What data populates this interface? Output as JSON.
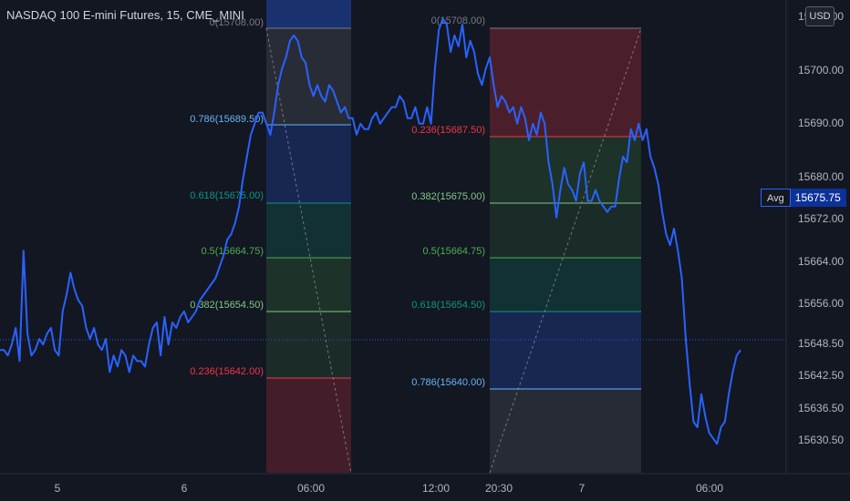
{
  "header": {
    "title": "NASDAQ 100 E-mini Futures, 15, CME_MINI",
    "currency_button": "USD"
  },
  "price_axis": {
    "labels": [
      "15708.00",
      "15700.00",
      "15690.00",
      "15680.00",
      "15672.00",
      "15664.00",
      "15656.00",
      "15648.50",
      "15642.50",
      "15636.50",
      "15630.50"
    ],
    "avg_label": "Avg",
    "avg_value": "15675.75"
  },
  "time_axis": {
    "labels": [
      "5",
      "6",
      "06:00",
      "12:00",
      "20:30",
      "7",
      "06:00"
    ]
  },
  "fib_left": {
    "levels": [
      {
        "ratio_text": "0(15708.00)",
        "color": "#787b86"
      },
      {
        "ratio_text": "0.786(15689.50)",
        "color": "#64b5f6"
      },
      {
        "ratio_text": "0.618(15675.00)",
        "color": "#089981"
      },
      {
        "ratio_text": "0.5(15664.75)",
        "color": "#4caf50"
      },
      {
        "ratio_text": "0.382(15654.50)",
        "color": "#81c784"
      },
      {
        "ratio_text": "0.236(15642.00)",
        "color": "#f23645"
      }
    ]
  },
  "fib_right": {
    "levels": [
      {
        "ratio_text": "0(15708.00)",
        "color": "#787b86"
      },
      {
        "ratio_text": "0.236(15687.50)",
        "color": "#f23645"
      },
      {
        "ratio_text": "0.382(15675.00)",
        "color": "#81c784"
      },
      {
        "ratio_text": "0.5(15664.75)",
        "color": "#4caf50"
      },
      {
        "ratio_text": "0.618(15654.50)",
        "color": "#089981"
      },
      {
        "ratio_text": "0.786(15640.00)",
        "color": "#64b5f6"
      }
    ]
  },
  "chart_data": {
    "type": "line",
    "title": "NASDAQ 100 E-mini Futures, 15, CME_MINI",
    "line_color": "#2962ff",
    "grid": false,
    "current_price_line": 15648.5,
    "series": [
      {
        "values": [
          15649,
          15649,
          15648,
          15650,
          15653,
          15647,
          15667,
          15652,
          15648,
          15649,
          15651,
          15650,
          15652,
          15653,
          15649,
          15648,
          15656,
          15659,
          15663,
          15660,
          15658,
          15657,
          15653,
          15651,
          15653,
          15650,
          15649,
          15651,
          15645,
          15648,
          15646,
          15649,
          15648,
          15645,
          15648,
          15647,
          15647,
          15646,
          15650,
          15653,
          15654,
          15648,
          15655,
          15650,
          15654,
          15653,
          15655,
          15656,
          15654,
          15655,
          15656,
          15658,
          15659,
          15660,
          15661,
          15662,
          15664,
          15666,
          15669,
          15670,
          15672,
          15675,
          15680,
          15684,
          15688,
          15690,
          15692,
          15692,
          15690,
          15688,
          15692,
          15697,
          15700,
          15702,
          15705,
          15706,
          15705,
          15702,
          15701,
          15697,
          15695,
          15697,
          15695,
          15694,
          15697,
          15696,
          15694,
          15692,
          15693,
          15691,
          15691,
          15688,
          15690,
          15689,
          15689,
          15691,
          15692,
          15690,
          15691,
          15692,
          15693,
          15693,
          15695,
          15694,
          15691,
          15691,
          15693,
          15690,
          15690,
          15693,
          15690,
          15700,
          15707,
          15709,
          15708,
          15703,
          15706,
          15704,
          15708,
          15702,
          15705,
          15703,
          15699,
          15697,
          15700,
          15702,
          15697,
          15693,
          15695,
          15694,
          15692,
          15693,
          15690,
          15693,
          15691,
          15687,
          15690,
          15688,
          15692,
          15690,
          15683,
          15679,
          15673,
          15678,
          15682,
          15679,
          15678,
          15676,
          15681,
          15683,
          15676,
          15676,
          15678,
          15676,
          15675,
          15674,
          15675,
          15675,
          15680,
          15684,
          15683,
          15689,
          15687,
          15690,
          15687,
          15689,
          15684,
          15682,
          15679,
          15674,
          15670,
          15668,
          15671,
          15667,
          15662,
          15651,
          15643,
          15636,
          15635,
          15641,
          15637,
          15634,
          15633,
          15632,
          15635,
          15636,
          15641,
          15645,
          15648,
          15649
        ]
      }
    ],
    "ylim": [
      15626.6,
      15712.4
    ]
  },
  "indicators": {
    "count_label": ""
  }
}
